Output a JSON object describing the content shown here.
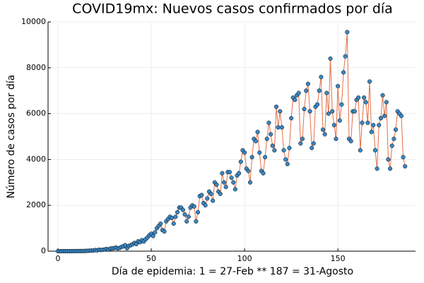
{
  "chart_data": {
    "type": "line",
    "title": "COVID19mx: Nuevos casos confirmados por día",
    "x_label": "Día de epidemia: 1 = 27-Feb ** 187 = 31-Agosto",
    "y_label": "Número de casos por día",
    "x": [
      0,
      1,
      2,
      3,
      4,
      5,
      6,
      7,
      8,
      9,
      10,
      11,
      12,
      13,
      14,
      15,
      16,
      17,
      18,
      19,
      20,
      21,
      22,
      23,
      24,
      25,
      26,
      27,
      28,
      29,
      30,
      31,
      32,
      33,
      34,
      35,
      36,
      37,
      38,
      39,
      40,
      41,
      42,
      43,
      44,
      45,
      46,
      47,
      48,
      49,
      50,
      51,
      52,
      53,
      54,
      55,
      56,
      57,
      58,
      59,
      60,
      61,
      62,
      63,
      64,
      65,
      66,
      67,
      68,
      69,
      70,
      71,
      72,
      73,
      74,
      75,
      76,
      77,
      78,
      79,
      80,
      81,
      82,
      83,
      84,
      85,
      86,
      87,
      88,
      89,
      90,
      91,
      92,
      93,
      94,
      95,
      96,
      97,
      98,
      99,
      100,
      101,
      102,
      103,
      104,
      105,
      106,
      107,
      108,
      109,
      110,
      111,
      112,
      113,
      114,
      115,
      116,
      117,
      118,
      119,
      120,
      121,
      122,
      123,
      124,
      125,
      126,
      127,
      128,
      129,
      130,
      131,
      132,
      133,
      134,
      135,
      136,
      137,
      138,
      139,
      140,
      141,
      142,
      143,
      144,
      145,
      146,
      147,
      148,
      149,
      150,
      151,
      152,
      153,
      154,
      155,
      156,
      157,
      158,
      159,
      160,
      161,
      162,
      163,
      164,
      165,
      166,
      167,
      168,
      169,
      170,
      171,
      172,
      173,
      174,
      175,
      176,
      177,
      178,
      179,
      180,
      181,
      182,
      183,
      184,
      185,
      186
    ],
    "series": [
      {
        "color": "#e26f46",
        "marker_color": "#3a87c4",
        "values": [
          0,
          0,
          0,
          0,
          1,
          2,
          0,
          1,
          2,
          3,
          4,
          5,
          5,
          6,
          7,
          12,
          14,
          21,
          26,
          29,
          48,
          37,
          63,
          51,
          58,
          73,
          98,
          70,
          110,
          120,
          130,
          160,
          120,
          140,
          180,
          210,
          260,
          130,
          230,
          260,
          300,
          360,
          310,
          430,
          390,
          480,
          420,
          520,
          600,
          700,
          760,
          660,
          820,
          1000,
          1100,
          1200,
          920,
          860,
          1300,
          1400,
          1500,
          1450,
          1200,
          1500,
          1700,
          1900,
          1900,
          1800,
          1600,
          1300,
          1500,
          1900,
          2000,
          1950,
          1300,
          1700,
          2400,
          2450,
          2100,
          2000,
          2300,
          2600,
          2500,
          2200,
          3000,
          2900,
          2600,
          2500,
          3400,
          3000,
          2800,
          3450,
          3450,
          3200,
          3000,
          2700,
          3300,
          3400,
          3900,
          4400,
          4300,
          3600,
          3500,
          3000,
          4100,
          4900,
          4800,
          5200,
          4300,
          3500,
          3400,
          4100,
          4900,
          5600,
          5100,
          4600,
          4400,
          6300,
          5400,
          6100,
          5400,
          4400,
          4000,
          3800,
          4500,
          5800,
          6700,
          6600,
          6800,
          6900,
          4700,
          4900,
          6200,
          7000,
          7300,
          6100,
          4500,
          4700,
          6300,
          6400,
          7000,
          7600,
          5300,
          5100,
          6900,
          6000,
          8400,
          6100,
          5500,
          4900,
          7200,
          5700,
          6400,
          7800,
          8500,
          9556,
          4900,
          4800,
          6100,
          6100,
          6600,
          6700,
          4400,
          5600,
          6700,
          6500,
          5600,
          7400,
          5200,
          5500,
          4400,
          3600,
          5500,
          5800,
          6800,
          5900,
          6500,
          4000,
          3600,
          4600,
          4900,
          5300,
          6100,
          6000,
          5900,
          4100,
          3700
        ]
      }
    ],
    "xlim": [
      -5.3,
      191.6
    ],
    "xticks": [
      0,
      50,
      100,
      150
    ],
    "ylim": [
      0,
      10000
    ],
    "yticks": [
      0,
      2000,
      4000,
      6000,
      8000,
      10000
    ],
    "grid": true
  }
}
